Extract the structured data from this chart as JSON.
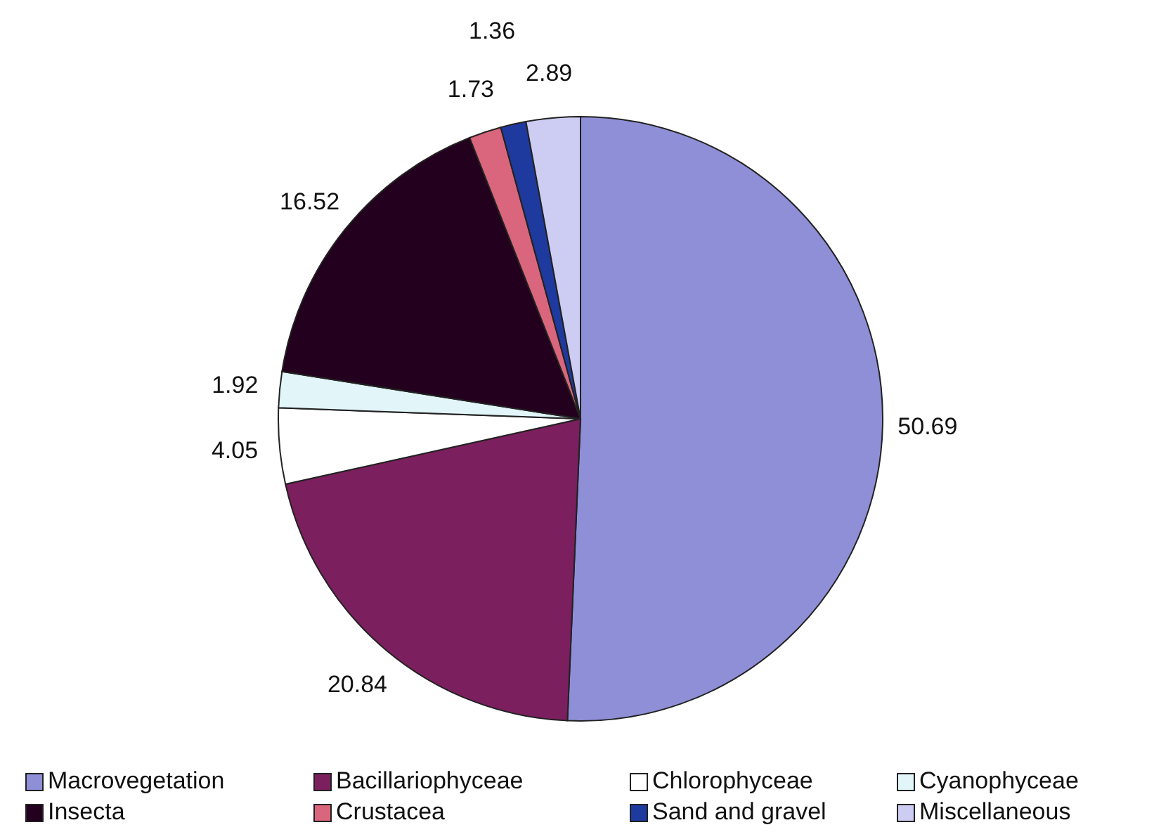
{
  "chart_data": {
    "type": "pie",
    "categories": [
      "Macrovegetation",
      "Bacillariophyceae",
      "Chlorophyceae",
      "Cyanophyceae",
      "Insecta",
      "Crustacea",
      "Sand and gravel",
      "Miscellaneous"
    ],
    "values": [
      50.69,
      20.84,
      4.05,
      1.92,
      16.52,
      1.73,
      1.36,
      2.89
    ],
    "colors": [
      "#8f8fd8",
      "#7b1f5e",
      "#ffffff",
      "#e2f6fa",
      "#22001e",
      "#d9667c",
      "#1f3a9e",
      "#cdcdf4"
    ],
    "data_labels": true,
    "legend": "bottom"
  }
}
